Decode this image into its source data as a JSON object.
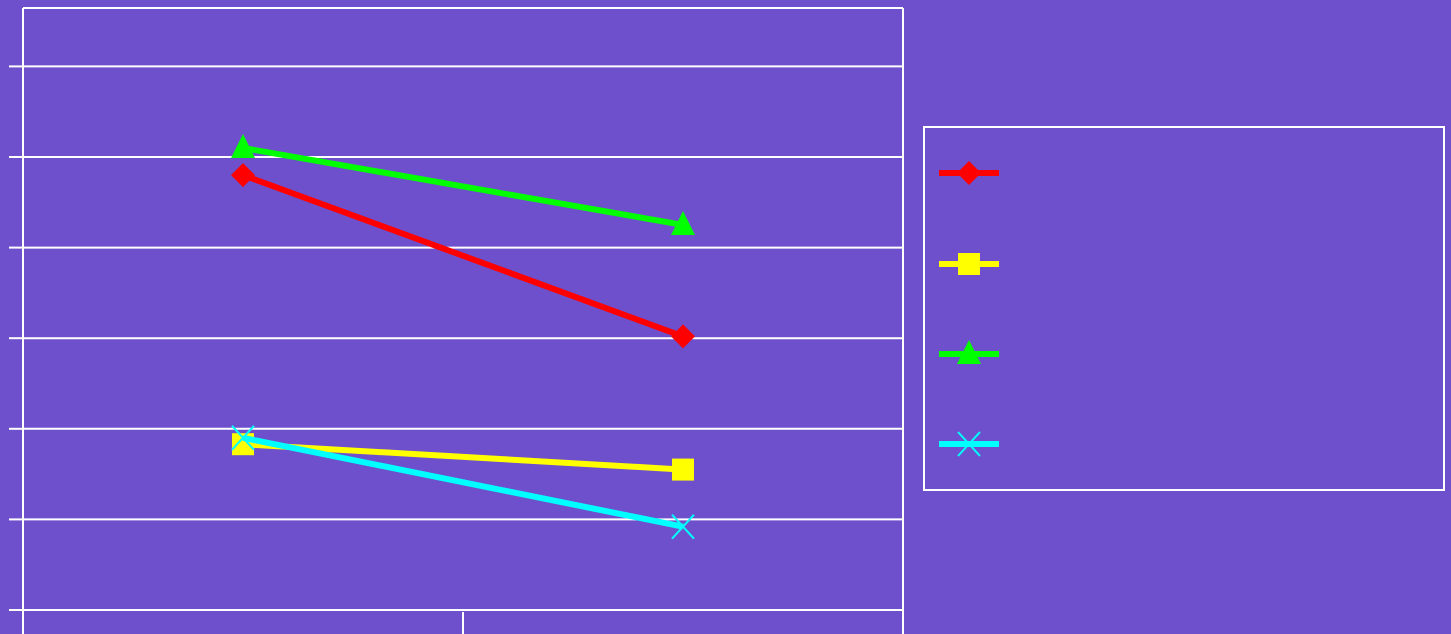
{
  "colors": {
    "background": "#6e50cc",
    "frame": "#ffffff"
  },
  "chart_data": {
    "type": "line",
    "title": "",
    "xlabel": "",
    "ylabel": "",
    "categories": [
      "",
      ""
    ],
    "ylim": [
      0,
      6.5
    ],
    "y_gridlines": [
      0,
      1,
      2,
      3,
      4,
      5,
      6
    ],
    "grid": true,
    "legend": "right",
    "series": [
      {
        "color": "#ff0000",
        "marker": "diamond",
        "values": [
          4.8,
          3.02
        ]
      },
      {
        "color": "#ffff00",
        "marker": "square",
        "values": [
          1.83,
          1.55
        ]
      },
      {
        "color": "#00ff00",
        "marker": "triangle",
        "values": [
          5.1,
          4.25
        ]
      },
      {
        "color": "#00ffff",
        "marker": "x",
        "values": [
          1.9,
          0.92
        ]
      }
    ]
  }
}
